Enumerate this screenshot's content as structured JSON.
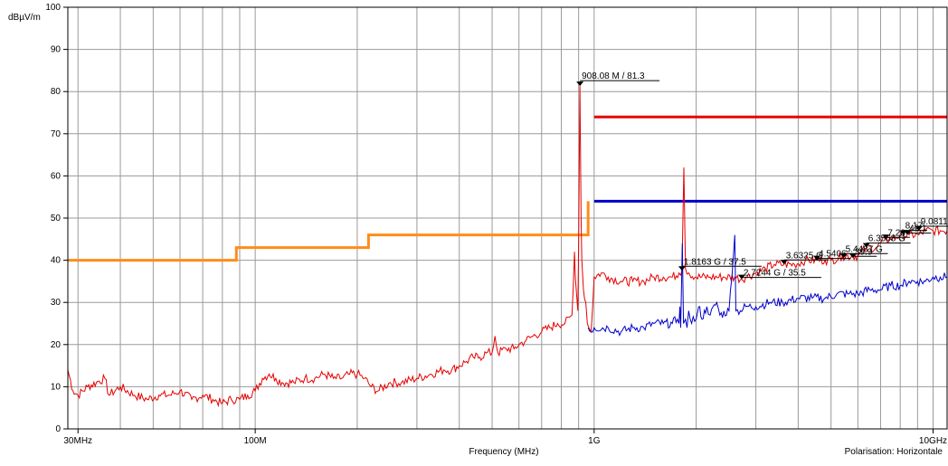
{
  "chart_data": {
    "type": "line",
    "title": "",
    "xlabel": "Frequency (MHz)",
    "ylabel": "dBµV/m",
    "x_scale": "log",
    "xlim": [
      28,
      11000
    ],
    "ylim": [
      0,
      100
    ],
    "y_ticks": [
      0,
      10,
      20,
      30,
      40,
      50,
      60,
      70,
      80,
      90,
      100
    ],
    "x_tick_labels": [
      {
        "value": 30,
        "label": "30MHz"
      },
      {
        "value": 100,
        "label": "100M"
      },
      {
        "value": 1000,
        "label": "1G"
      },
      {
        "value": 10000,
        "label": "10GHz"
      }
    ],
    "grid": true,
    "footer_note": "Polarisation: Horizontale",
    "limit_lines": [
      {
        "color": "#ff8c1a",
        "points": [
          [
            28,
            40
          ],
          [
            88,
            40
          ],
          [
            88,
            43
          ],
          [
            216,
            43
          ],
          [
            216,
            46
          ],
          [
            960,
            46
          ],
          [
            960,
            54
          ]
        ]
      },
      {
        "color": "#e60000",
        "points": [
          [
            1000,
            74
          ],
          [
            11000,
            74
          ]
        ]
      },
      {
        "color": "#0000cc",
        "points": [
          [
            1000,
            54
          ],
          [
            11000,
            54
          ]
        ]
      }
    ],
    "series": [
      {
        "color": "#e60000",
        "points": [
          [
            28,
            14
          ],
          [
            29,
            9
          ],
          [
            30,
            8
          ],
          [
            32,
            10
          ],
          [
            34,
            11
          ],
          [
            36,
            12
          ],
          [
            37,
            8
          ],
          [
            40,
            10
          ],
          [
            44,
            8
          ],
          [
            48,
            7
          ],
          [
            52,
            8
          ],
          [
            56,
            8
          ],
          [
            60,
            9
          ],
          [
            65,
            7
          ],
          [
            70,
            8
          ],
          [
            75,
            7
          ],
          [
            80,
            6
          ],
          [
            85,
            7
          ],
          [
            90,
            7
          ],
          [
            95,
            8
          ],
          [
            100,
            9
          ],
          [
            105,
            12
          ],
          [
            110,
            13
          ],
          [
            115,
            12
          ],
          [
            120,
            11
          ],
          [
            130,
            11
          ],
          [
            140,
            12
          ],
          [
            150,
            12
          ],
          [
            160,
            13
          ],
          [
            170,
            12
          ],
          [
            180,
            12
          ],
          [
            190,
            13
          ],
          [
            200,
            13
          ],
          [
            210,
            12
          ],
          [
            220,
            10
          ],
          [
            230,
            9
          ],
          [
            250,
            11
          ],
          [
            270,
            11
          ],
          [
            300,
            12
          ],
          [
            330,
            13
          ],
          [
            360,
            14
          ],
          [
            380,
            14
          ],
          [
            400,
            15
          ],
          [
            420,
            16
          ],
          [
            440,
            17
          ],
          [
            460,
            17
          ],
          [
            480,
            18
          ],
          [
            500,
            18
          ],
          [
            510,
            22
          ],
          [
            520,
            18
          ],
          [
            550,
            19
          ],
          [
            580,
            19
          ],
          [
            600,
            20
          ],
          [
            630,
            21
          ],
          [
            660,
            22
          ],
          [
            700,
            23
          ],
          [
            740,
            24
          ],
          [
            780,
            25
          ],
          [
            820,
            25
          ],
          [
            860,
            27
          ],
          [
            875,
            42
          ],
          [
            880,
            36
          ],
          [
            895,
            28
          ],
          [
            900,
            45
          ],
          [
            908,
            81.3
          ],
          [
            915,
            50
          ],
          [
            920,
            40
          ],
          [
            930,
            33
          ],
          [
            945,
            30
          ],
          [
            955,
            25
          ],
          [
            965,
            24
          ],
          [
            980,
            23
          ],
          [
            1000,
            36
          ],
          [
            1050,
            37
          ],
          [
            1100,
            36
          ],
          [
            1200,
            35
          ],
          [
            1300,
            35
          ],
          [
            1400,
            35
          ],
          [
            1500,
            36
          ],
          [
            1600,
            36
          ],
          [
            1700,
            36
          ],
          [
            1780,
            37
          ],
          [
            1816,
            37.5
          ],
          [
            1840,
            62
          ],
          [
            1860,
            38
          ],
          [
            1900,
            37
          ],
          [
            2000,
            36
          ],
          [
            2200,
            36
          ],
          [
            2400,
            36
          ],
          [
            2600,
            36
          ],
          [
            2724,
            35.5
          ],
          [
            2800,
            36
          ],
          [
            3000,
            37
          ],
          [
            3200,
            38
          ],
          [
            3400,
            39
          ],
          [
            3633,
            39
          ],
          [
            3900,
            39
          ],
          [
            4200,
            40
          ],
          [
            4540,
            40
          ],
          [
            4800,
            40
          ],
          [
            5000,
            40
          ],
          [
            5400,
            41
          ],
          [
            5800,
            41
          ],
          [
            6000,
            41
          ],
          [
            6357,
            43
          ],
          [
            6800,
            43
          ],
          [
            7260,
            45
          ],
          [
            7500,
            45
          ],
          [
            8000,
            46
          ],
          [
            8500,
            46
          ],
          [
            9081,
            46
          ],
          [
            9500,
            47
          ],
          [
            10000,
            47
          ],
          [
            10500,
            47
          ],
          [
            11000,
            47
          ]
        ]
      },
      {
        "color": "#0000cc",
        "points": [
          [
            960,
            24
          ],
          [
            980,
            23
          ],
          [
            1000,
            24
          ],
          [
            1100,
            24
          ],
          [
            1200,
            23
          ],
          [
            1300,
            24
          ],
          [
            1400,
            24
          ],
          [
            1500,
            25
          ],
          [
            1600,
            25
          ],
          [
            1700,
            25
          ],
          [
            1760,
            26
          ],
          [
            1780,
            25
          ],
          [
            1790,
            29
          ],
          [
            1800,
            24
          ],
          [
            1820,
            44
          ],
          [
            1835,
            25
          ],
          [
            1860,
            26
          ],
          [
            1880,
            24
          ],
          [
            1900,
            28
          ],
          [
            1920,
            26
          ],
          [
            2000,
            26
          ],
          [
            2050,
            29
          ],
          [
            2080,
            26
          ],
          [
            2150,
            29
          ],
          [
            2200,
            27
          ],
          [
            2300,
            30
          ],
          [
            2350,
            27
          ],
          [
            2500,
            28
          ],
          [
            2600,
            46
          ],
          [
            2620,
            28
          ],
          [
            2700,
            28
          ],
          [
            2800,
            29
          ],
          [
            3000,
            29
          ],
          [
            3300,
            30
          ],
          [
            3600,
            30
          ],
          [
            4000,
            31
          ],
          [
            4400,
            31
          ],
          [
            4800,
            31
          ],
          [
            5200,
            32
          ],
          [
            5600,
            32
          ],
          [
            6000,
            32
          ],
          [
            6500,
            33
          ],
          [
            7000,
            33
          ],
          [
            7500,
            34
          ],
          [
            8000,
            34
          ],
          [
            8500,
            35
          ],
          [
            9000,
            35
          ],
          [
            9500,
            35
          ],
          [
            10000,
            36
          ],
          [
            10500,
            36
          ],
          [
            11000,
            36
          ]
        ]
      }
    ],
    "markers": [
      {
        "x": 908.08,
        "y": 81.3,
        "label": "908.08 M / 81.3"
      },
      {
        "x": 1816.3,
        "y": 37.5,
        "label": "1.8163 G / 37.5"
      },
      {
        "x": 2724.4,
        "y": 35.5,
        "label": "2.7244 G / 35.5"
      },
      {
        "x": 3632.5,
        "y": 39.0,
        "label": "3.6325 G"
      },
      {
        "x": 4540.6,
        "y": 40.0,
        "label": "4.5406"
      },
      {
        "x": 5448.7,
        "y": 40.5,
        "label": "5.4487 G"
      },
      {
        "x": 5800,
        "y": 40.5,
        "label": "39.9"
      },
      {
        "x": 6356.8,
        "y": 43.0,
        "label": "6.3568 G"
      },
      {
        "x": 7260,
        "y": 45.0,
        "label": "7.26"
      },
      {
        "x": 8170,
        "y": 46.0,
        "label": "8.17"
      },
      {
        "x": 8400,
        "y": 46.0,
        "label": "42.1"
      },
      {
        "x": 9081.1,
        "y": 47.0,
        "label": "9.0811 G"
      }
    ]
  }
}
